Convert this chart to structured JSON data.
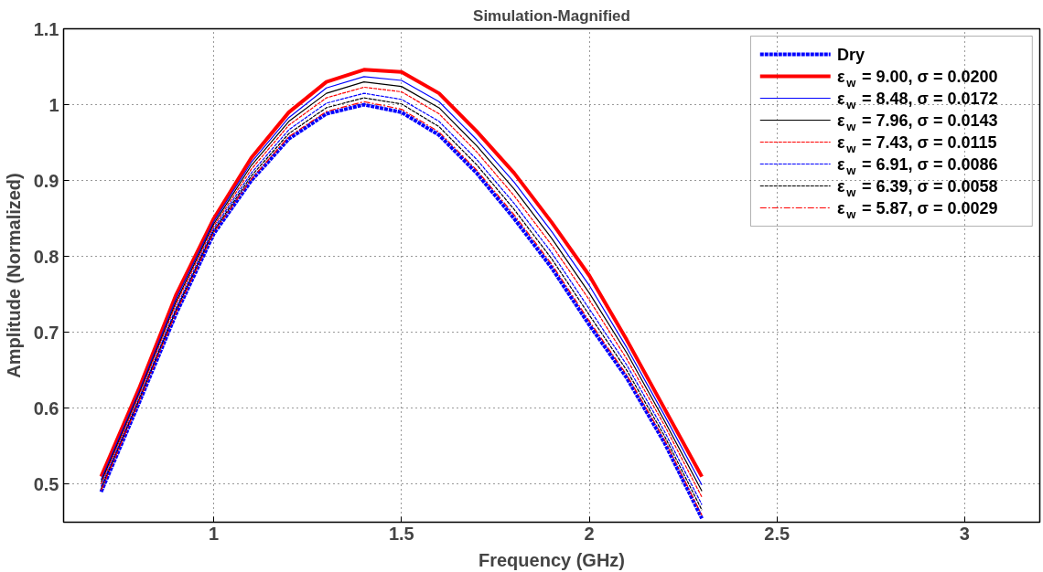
{
  "chart_data": {
    "type": "line",
    "title": "Simulation-Magnified",
    "xlabel": "Frequency (GHz)",
    "ylabel": "Amplitude (Normalized)",
    "x": [
      0.7,
      0.8,
      0.9,
      1.0,
      1.1,
      1.2,
      1.3,
      1.4,
      1.5,
      1.6,
      1.7,
      1.8,
      1.9,
      2.0,
      2.1,
      2.2,
      2.3
    ],
    "series": [
      {
        "name": "Dry",
        "color": "#0000ff",
        "line_style": "dashed",
        "values": [
          0.49,
          0.606,
          0.725,
          0.83,
          0.9,
          0.955,
          0.988,
          1.0,
          0.99,
          0.96,
          0.91,
          0.85,
          0.785,
          0.71,
          0.64,
          0.555,
          0.455
        ]
      },
      {
        "name": "ε$_{w}$ = 9.00, σ = 0.0200",
        "color": "#ff0000",
        "line_style": "solid",
        "values": [
          0.51,
          0.625,
          0.75,
          0.85,
          0.93,
          0.99,
          1.03,
          1.046,
          1.043,
          1.015,
          0.965,
          0.91,
          0.845,
          0.775,
          0.69,
          0.6,
          0.51
        ]
      },
      {
        "name": "ε$_{w}$ = 8.48, σ = 0.0172",
        "color": "#0000ff",
        "line_style": "solid",
        "values": [
          0.506,
          0.621,
          0.745,
          0.846,
          0.924,
          0.983,
          1.022,
          1.037,
          1.032,
          1.004,
          0.954,
          0.898,
          0.833,
          0.762,
          0.68,
          0.591,
          0.499
        ]
      },
      {
        "name": "ε$_{w}$ = 7.96, σ = 0.0143",
        "color": "#000000",
        "line_style": "solid",
        "values": [
          0.503,
          0.618,
          0.741,
          0.843,
          0.92,
          0.978,
          1.015,
          1.03,
          1.024,
          0.996,
          0.946,
          0.889,
          0.824,
          0.752,
          0.673,
          0.584,
          0.491
        ]
      },
      {
        "name": "ε$_{w}$ = 7.43, σ = 0.0115",
        "color": "#ff0000",
        "line_style": "dashed",
        "values": [
          0.5,
          0.616,
          0.738,
          0.84,
          0.915,
          0.973,
          1.009,
          1.023,
          1.017,
          0.988,
          0.938,
          0.88,
          0.815,
          0.743,
          0.665,
          0.578,
          0.483
        ]
      },
      {
        "name": "ε$_{w}$ = 6.91, σ = 0.0086",
        "color": "#0000ff",
        "line_style": "dashed",
        "values": [
          0.497,
          0.612,
          0.733,
          0.837,
          0.91,
          0.967,
          1.002,
          1.015,
          1.007,
          0.978,
          0.928,
          0.87,
          0.805,
          0.731,
          0.657,
          0.57,
          0.473
        ]
      },
      {
        "name": "ε$_{w}$ = 6.39, σ = 0.0058",
        "color": "#000000",
        "line_style": "dashed",
        "values": [
          0.494,
          0.61,
          0.73,
          0.834,
          0.906,
          0.962,
          0.996,
          1.009,
          1.001,
          0.971,
          0.921,
          0.862,
          0.797,
          0.723,
          0.65,
          0.564,
          0.466
        ]
      },
      {
        "name": "ε$_{w}$ = 5.87, σ = 0.0029",
        "color": "#ff0000",
        "line_style": "dashdot",
        "values": [
          0.492,
          0.608,
          0.727,
          0.832,
          0.902,
          0.958,
          0.991,
          1.004,
          0.994,
          0.964,
          0.914,
          0.855,
          0.79,
          0.715,
          0.644,
          0.559,
          0.459
        ]
      }
    ],
    "xlim": [
      0.6,
      3.2
    ],
    "ylim": [
      0.45,
      1.1
    ],
    "xticks": [
      1,
      1.5,
      2,
      2.5,
      3
    ],
    "yticks": [
      0.5,
      0.6,
      0.7,
      0.8,
      0.9,
      1,
      1.1
    ],
    "grid": true,
    "legend": "top right"
  }
}
